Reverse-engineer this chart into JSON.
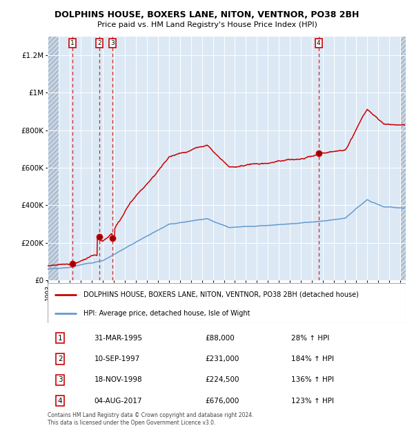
{
  "title": "DOLPHINS HOUSE, BOXERS LANE, NITON, VENTNOR, PO38 2BH",
  "subtitle": "Price paid vs. HM Land Registry's House Price Index (HPI)",
  "ylim": [
    0,
    1300000
  ],
  "xlim_start": 1993.0,
  "xlim_end": 2025.5,
  "background_color": "#dce9f5",
  "grid_color": "#ffffff",
  "sale_color": "#cc0000",
  "hpi_color": "#6699cc",
  "sales": [
    {
      "date_num": 1995.247,
      "price": 88000,
      "label": "1"
    },
    {
      "date_num": 1997.703,
      "price": 231000,
      "label": "2"
    },
    {
      "date_num": 1998.881,
      "price": 224500,
      "label": "3"
    },
    {
      "date_num": 2017.589,
      "price": 676000,
      "label": "4"
    }
  ],
  "legend_entries": [
    "DOLPHINS HOUSE, BOXERS LANE, NITON, VENTNOR, PO38 2BH (detached house)",
    "HPI: Average price, detached house, Isle of Wight"
  ],
  "table_rows": [
    {
      "num": "1",
      "date": "31-MAR-1995",
      "price": "£88,000",
      "change": "28% ↑ HPI"
    },
    {
      "num": "2",
      "date": "10-SEP-1997",
      "price": "£231,000",
      "change": "184% ↑ HPI"
    },
    {
      "num": "3",
      "date": "18-NOV-1998",
      "price": "£224,500",
      "change": "136% ↑ HPI"
    },
    {
      "num": "4",
      "date": "04-AUG-2017",
      "price": "£676,000",
      "change": "123% ↑ HPI"
    }
  ],
  "footnote": "Contains HM Land Registry data © Crown copyright and database right 2024.\nThis data is licensed under the Open Government Licence v3.0.",
  "yticks": [
    0,
    200000,
    400000,
    600000,
    800000,
    1000000,
    1200000
  ],
  "ylabels": [
    "£0",
    "£200K",
    "£400K",
    "£600K",
    "£800K",
    "£1M",
    "£1.2M"
  ]
}
